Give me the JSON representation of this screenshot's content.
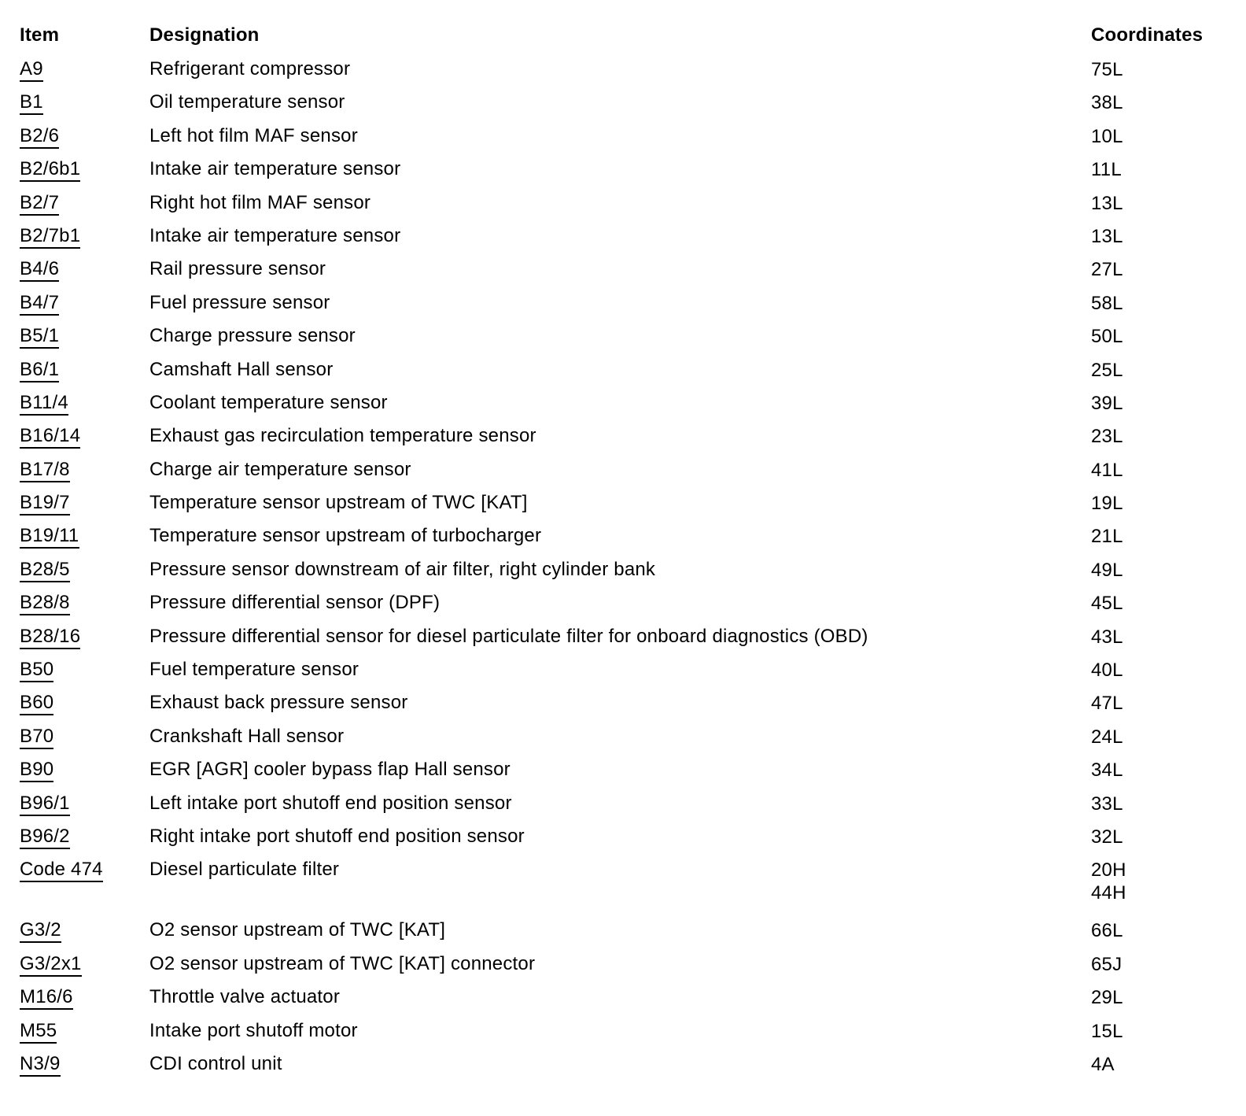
{
  "table": {
    "headers": {
      "item": "Item",
      "designation": "Designation",
      "coordinates": "Coordinates"
    },
    "rows": [
      {
        "item": "A9",
        "designation": "Refrigerant compressor",
        "coordinates": [
          "75L"
        ]
      },
      {
        "item": "B1",
        "designation": "Oil temperature sensor",
        "coordinates": [
          "38L"
        ]
      },
      {
        "item": "B2/6",
        "designation": "Left hot film MAF sensor",
        "coordinates": [
          "10L"
        ]
      },
      {
        "item": "B2/6b1",
        "designation": "Intake air temperature sensor",
        "coordinates": [
          "11L"
        ]
      },
      {
        "item": "B2/7",
        "designation": "Right hot film MAF sensor",
        "coordinates": [
          "13L"
        ]
      },
      {
        "item": "B2/7b1",
        "designation": "Intake air temperature sensor",
        "coordinates": [
          "13L"
        ]
      },
      {
        "item": "B4/6",
        "designation": "Rail pressure sensor",
        "coordinates": [
          "27L"
        ]
      },
      {
        "item": "B4/7",
        "designation": "Fuel pressure sensor",
        "coordinates": [
          "58L"
        ]
      },
      {
        "item": "B5/1",
        "designation": "Charge pressure sensor",
        "coordinates": [
          "50L"
        ]
      },
      {
        "item": "B6/1",
        "designation": "Camshaft Hall sensor",
        "coordinates": [
          "25L"
        ]
      },
      {
        "item": "B11/4",
        "designation": "Coolant temperature sensor",
        "coordinates": [
          "39L"
        ]
      },
      {
        "item": "B16/14",
        "designation": "Exhaust gas recirculation temperature sensor",
        "coordinates": [
          "23L"
        ]
      },
      {
        "item": "B17/8",
        "designation": "Charge air temperature sensor",
        "coordinates": [
          "41L"
        ]
      },
      {
        "item": "B19/7",
        "designation": "Temperature sensor upstream of TWC [KAT]",
        "coordinates": [
          "19L"
        ]
      },
      {
        "item": "B19/11",
        "designation": "Temperature sensor upstream of turbocharger",
        "coordinates": [
          "21L"
        ]
      },
      {
        "item": "B28/5",
        "designation": "Pressure sensor downstream of air filter, right cylinder bank",
        "coordinates": [
          "49L"
        ]
      },
      {
        "item": "B28/8",
        "designation": "Pressure differential sensor (DPF)",
        "coordinates": [
          "45L"
        ]
      },
      {
        "item": "B28/16",
        "designation": "Pressure differential sensor for diesel particulate filter for onboard diagnostics (OBD)",
        "coordinates": [
          "43L"
        ]
      },
      {
        "item": "B50",
        "designation": "Fuel temperature sensor",
        "coordinates": [
          "40L"
        ]
      },
      {
        "item": "B60",
        "designation": "Exhaust back pressure sensor",
        "coordinates": [
          "47L"
        ]
      },
      {
        "item": "B70",
        "designation": "Crankshaft Hall sensor",
        "coordinates": [
          "24L"
        ]
      },
      {
        "item": "B90",
        "designation": "EGR [AGR] cooler bypass flap Hall sensor",
        "coordinates": [
          "34L"
        ]
      },
      {
        "item": "B96/1",
        "designation": "Left intake port shutoff end position sensor",
        "coordinates": [
          "33L"
        ]
      },
      {
        "item": "B96/2",
        "designation": "Right intake port shutoff end position sensor",
        "coordinates": [
          "32L"
        ]
      },
      {
        "item": "Code 474",
        "designation": "Diesel particulate filter",
        "coordinates": [
          "20H",
          "44H"
        ]
      },
      {
        "item": "G3/2",
        "designation": "O2 sensor upstream of TWC [KAT]",
        "coordinates": [
          "66L"
        ]
      },
      {
        "item": "G3/2x1",
        "designation": "O2 sensor upstream of TWC [KAT] connector",
        "coordinates": [
          "65J"
        ]
      },
      {
        "item": "M16/6",
        "designation": "Throttle valve actuator",
        "coordinates": [
          "29L"
        ]
      },
      {
        "item": "M55",
        "designation": "Intake port shutoff motor",
        "coordinates": [
          "15L"
        ]
      },
      {
        "item": "N3/9",
        "designation": "CDI control unit",
        "coordinates": [
          "4A"
        ]
      }
    ]
  }
}
